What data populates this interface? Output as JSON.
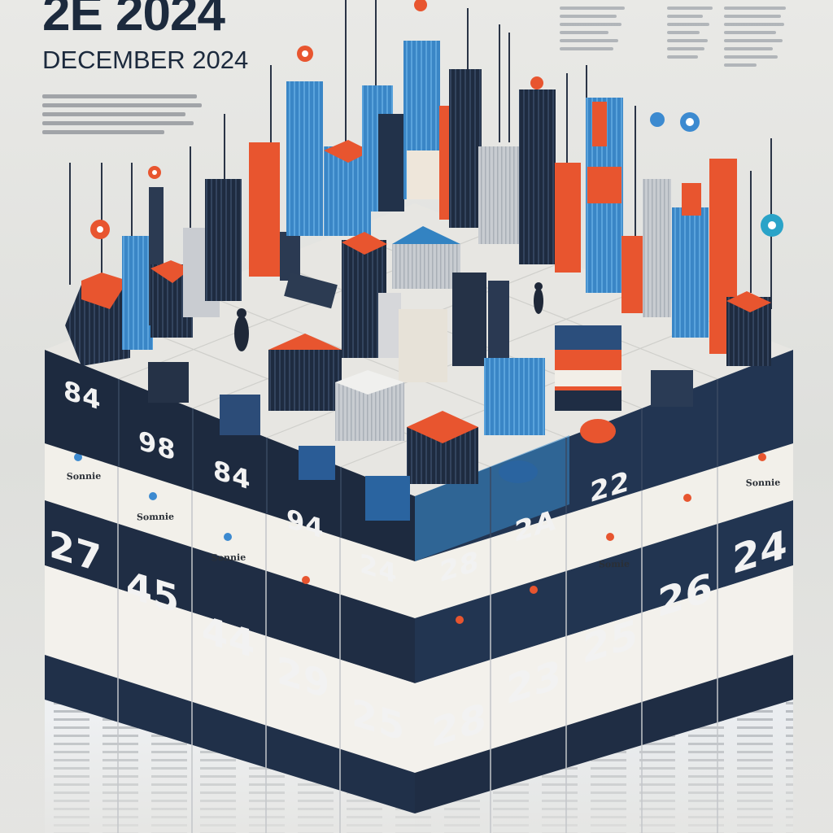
{
  "header": {
    "title_partial": "2E 2024",
    "subtitle": "DECEMBER 2024"
  },
  "colors": {
    "navy": "#1e2b40",
    "blue": "#3f8fd0",
    "sky": "#58a8de",
    "orange": "#e8552f",
    "paper": "#f1efe9",
    "ground": "#dcdcd8"
  },
  "top_row_numbers": [
    "84",
    "98",
    "84",
    "94",
    "24",
    "28",
    "2A",
    "22"
  ],
  "calendar_numbers": {
    "row1": [
      "27",
      "45",
      "44",
      "29",
      "25",
      "28",
      "23",
      "25",
      "26",
      "24"
    ],
    "row_labels": [
      "27",
      "45",
      "44",
      "29",
      "25",
      "28",
      "23",
      "25",
      "26",
      "24"
    ]
  },
  "page_notes": [
    "Sonnie",
    "Somnie",
    "Sonnie",
    "Somie",
    "Sonnie"
  ]
}
